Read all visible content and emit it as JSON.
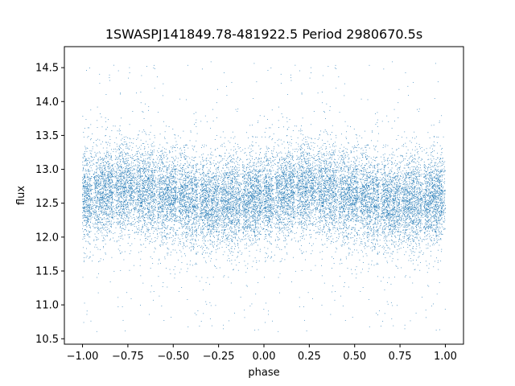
{
  "chart_data": {
    "type": "scatter",
    "title": "1SWASPJ141849.78-481922.5 Period 2980670.5s",
    "xlabel": "phase",
    "ylabel": "flux",
    "xlim": [
      -1.1,
      1.1
    ],
    "ylim": [
      10.42,
      14.81
    ],
    "xticks": [
      -1.0,
      -0.75,
      -0.5,
      -0.25,
      0.0,
      0.25,
      0.5,
      0.75,
      1.0
    ],
    "xtick_labels": [
      "−1.00",
      "−0.75",
      "−0.50",
      "−0.25",
      "0.00",
      "0.25",
      "0.50",
      "0.75",
      "1.00"
    ],
    "yticks": [
      10.5,
      11.0,
      11.5,
      12.0,
      12.5,
      13.0,
      13.5,
      14.0,
      14.5
    ],
    "ytick_labels": [
      "10.5",
      "11.0",
      "11.5",
      "12.0",
      "12.5",
      "13.0",
      "13.5",
      "14.0",
      "14.5"
    ],
    "grid": false,
    "legend": "none",
    "point_color": "#1f77b4",
    "series_summary": {
      "description": "Dense phase-folded light curve; points repeat for phase p and p-1 (two full cycles).",
      "x_range": [
        -1.0,
        1.0
      ],
      "typical_flux_band": [
        11.9,
        13.3
      ],
      "median_flux": 12.6,
      "outlier_flux_range": [
        10.6,
        14.6
      ],
      "points_per_cycle": 9000
    }
  }
}
